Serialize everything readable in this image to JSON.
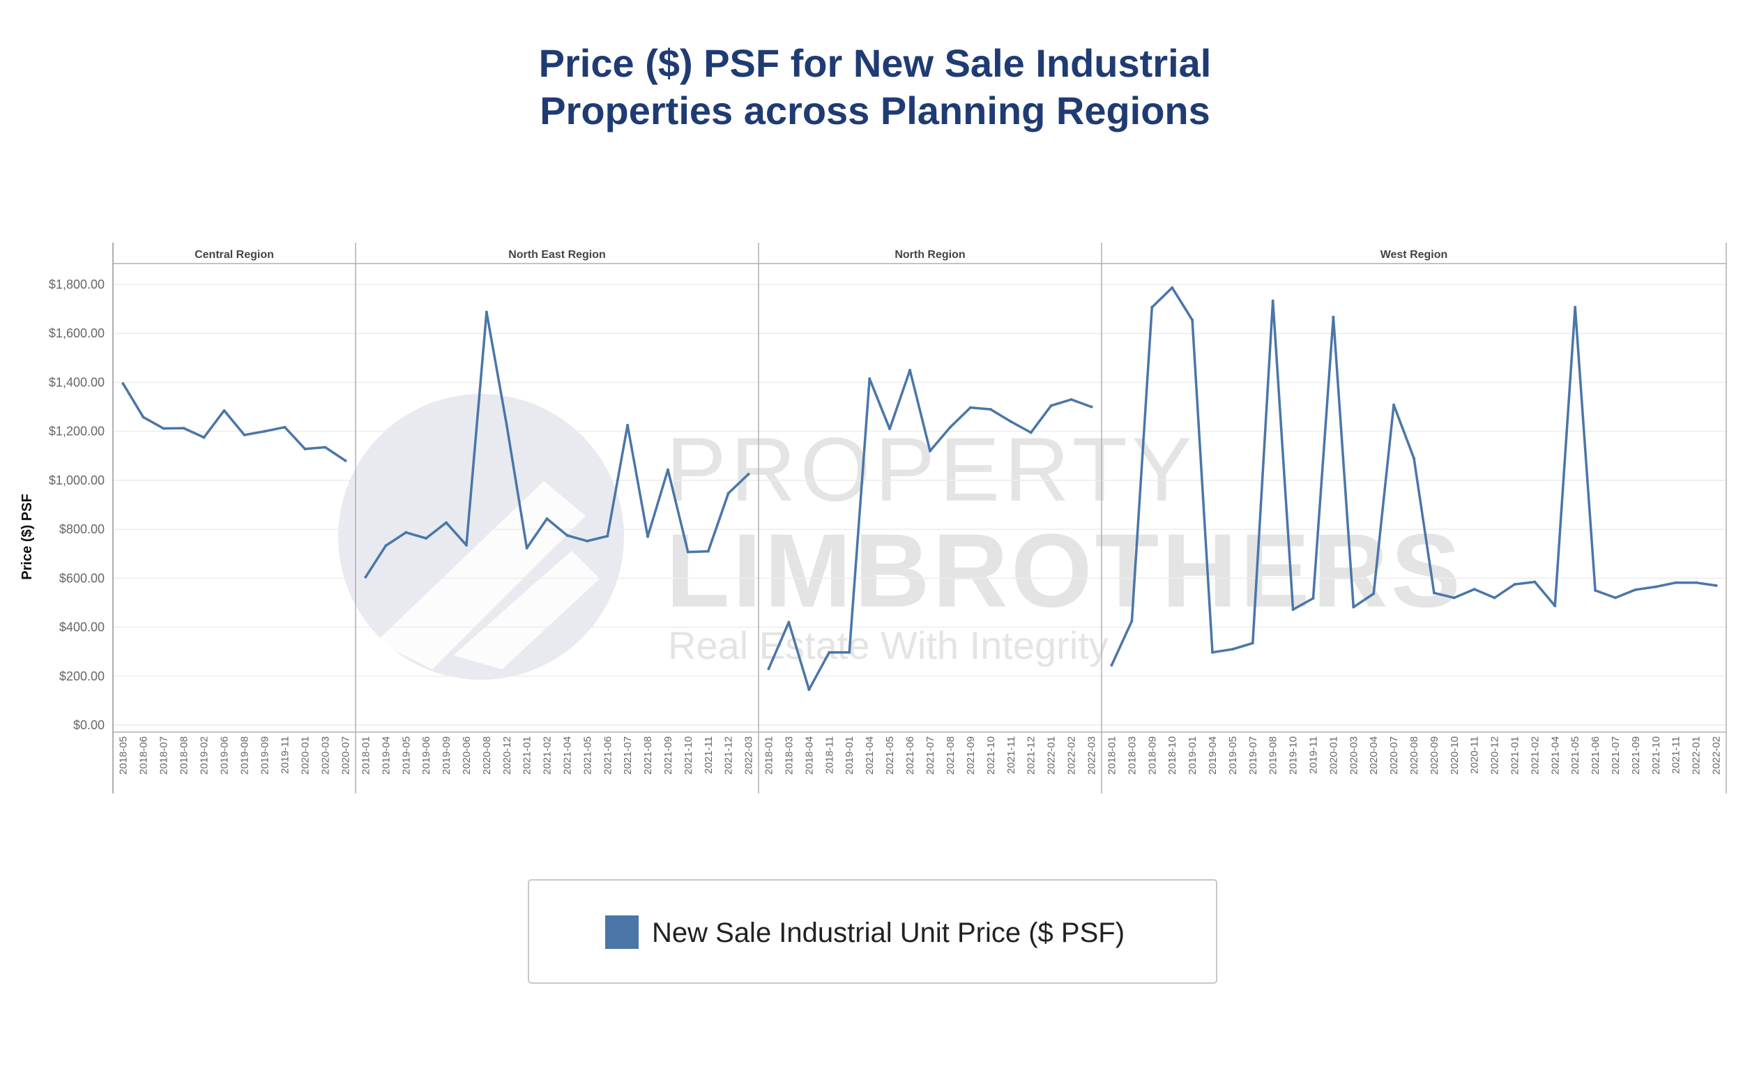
{
  "chart_data": {
    "type": "line",
    "title_lines": [
      "Price ($) PSF for New Sale Industrial",
      "Properties across Planning Regions"
    ],
    "ylabel": "Price ($) PSF",
    "ylim": [
      0,
      1800
    ],
    "yticks": [
      0,
      200,
      400,
      600,
      800,
      1000,
      1200,
      1400,
      1600,
      1800
    ],
    "ytick_labels": [
      "$0.00",
      "$200.00",
      "$400.00",
      "$600.00",
      "$800.00",
      "$1,000.00",
      "$1,200.00",
      "$1,400.00",
      "$1,600.00",
      "$1,800.00"
    ],
    "grid": true,
    "series_color": "#4a76a8",
    "legend": {
      "label": "New Sale Industrial Unit Price ($ PSF)",
      "position": "bottom-center"
    },
    "panels": [
      {
        "name": "Central Region",
        "x": [
          "2018-05",
          "2018-06",
          "2018-07",
          "2018-08",
          "2019-02",
          "2019-06",
          "2019-08",
          "2019-09",
          "2019-11",
          "2020-01",
          "2020-03",
          "2020-07"
        ],
        "values": [
          1395,
          1258,
          1212,
          1213,
          1175,
          1285,
          1185,
          1200,
          1217,
          1128,
          1135,
          1080
        ]
      },
      {
        "name": "North East Region",
        "x": [
          "2018-01",
          "2019-04",
          "2019-05",
          "2019-06",
          "2019-09",
          "2020-06",
          "2020-08",
          "2020-12",
          "2021-01",
          "2021-02",
          "2021-04",
          "2021-05",
          "2021-06",
          "2021-07",
          "2021-08",
          "2021-09",
          "2021-10",
          "2021-11",
          "2021-12",
          "2022-03"
        ],
        "values": [
          605,
          733,
          787,
          763,
          827,
          735,
          1687,
          1225,
          723,
          843,
          775,
          752,
          772,
          1225,
          770,
          1043,
          707,
          710,
          947,
          1025
        ]
      },
      {
        "name": "North Region",
        "x": [
          "2018-01",
          "2018-03",
          "2018-04",
          "2018-11",
          "2019-01",
          "2021-04",
          "2021-05",
          "2021-06",
          "2021-07",
          "2021-08",
          "2021-09",
          "2021-10",
          "2021-11",
          "2021-12",
          "2022-01",
          "2022-02",
          "2022-03"
        ],
        "values": [
          230,
          420,
          145,
          297,
          297,
          1415,
          1210,
          1450,
          1120,
          1217,
          1297,
          1290,
          1240,
          1195,
          1305,
          1330,
          1300
        ]
      },
      {
        "name": "West Region",
        "x": [
          "2018-01",
          "2018-03",
          "2018-09",
          "2018-10",
          "2019-01",
          "2019-04",
          "2019-05",
          "2019-07",
          "2019-08",
          "2019-10",
          "2019-11",
          "2020-01",
          "2020-03",
          "2020-04",
          "2020-07",
          "2020-08",
          "2020-09",
          "2020-10",
          "2020-11",
          "2020-12",
          "2021-01",
          "2021-02",
          "2021-04",
          "2021-05",
          "2021-06",
          "2021-07",
          "2021-09",
          "2021-10",
          "2021-11",
          "2022-01",
          "2022-02"
        ],
        "values": [
          245,
          425,
          1707,
          1787,
          1655,
          297,
          310,
          335,
          1733,
          472,
          518,
          1667,
          482,
          537,
          1308,
          1090,
          540,
          520,
          555,
          520,
          575,
          585,
          487,
          1707,
          550,
          520,
          553,
          565,
          582,
          582,
          570
        ]
      }
    ]
  },
  "watermark": {
    "line1": "PROPERTY",
    "line2": "LIMBROTHERS",
    "tagline": "Real Estate With Integrity"
  }
}
